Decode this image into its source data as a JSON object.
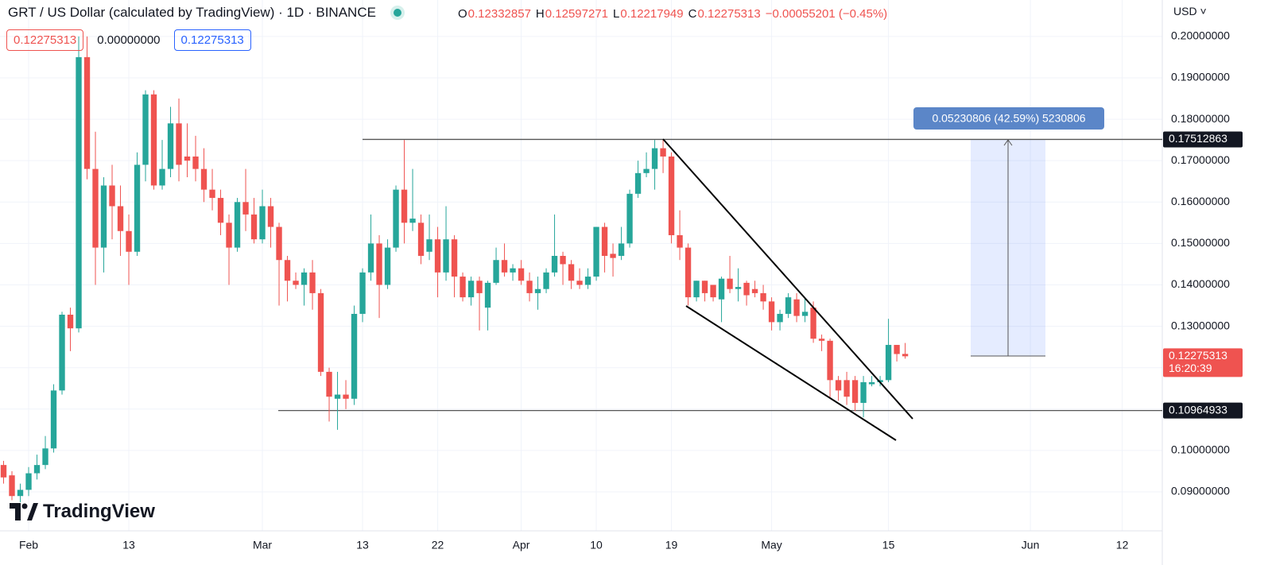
{
  "chart_data": {
    "type": "candlestick",
    "title": "GRT / US Dollar (calculated by TradingView) · 1D · BINANCE",
    "ohlc_legend": [
      {
        "label": "O",
        "value": 0.12332857
      },
      {
        "label": "H",
        "value": 0.12597271
      },
      {
        "label": "L",
        "value": 0.12217949
      },
      {
        "label": "C",
        "value": 0.12275313
      }
    ],
    "change_label": "−0.00055201 (−0.45%)",
    "legend_boxes": [
      "0.12275313",
      "0.00000000",
      "0.12275313"
    ],
    "currency": "USD",
    "logo": "TradingView",
    "up_color": "#26a69a",
    "down_color": "#ef5350",
    "grid": true,
    "x": [
      -3,
      -2,
      -1,
      0,
      1,
      2,
      3,
      4,
      5,
      6,
      7,
      8,
      9,
      10,
      11,
      12,
      13,
      14,
      15,
      16,
      17,
      18,
      19,
      20,
      21,
      22,
      23,
      24,
      25,
      26,
      27,
      28,
      29,
      30,
      31,
      32,
      33,
      34,
      35,
      36,
      37,
      38,
      39,
      40,
      41,
      42,
      43,
      44,
      45,
      46,
      47,
      48,
      49,
      50,
      51,
      52,
      53,
      54,
      55,
      56,
      57,
      58,
      59,
      60,
      61,
      62,
      63,
      64,
      65,
      66,
      67,
      68,
      69,
      70,
      71,
      72,
      73,
      74,
      75,
      76,
      77,
      78,
      79,
      80,
      81,
      82,
      83,
      84,
      85,
      86,
      87,
      88,
      89,
      90,
      91,
      92,
      93,
      94,
      95,
      96,
      97,
      98,
      99,
      100,
      101,
      102,
      103,
      104,
      105
    ],
    "open": [
      0.0965,
      0.094,
      0.089,
      0.0905,
      0.0945,
      0.0965,
      0.1005,
      0.1145,
      0.1328,
      0.1295,
      0.195,
      0.168,
      0.149,
      0.164,
      0.159,
      0.153,
      0.148,
      0.169,
      0.186,
      0.164,
      0.168,
      0.179,
      0.171,
      0.171,
      0.168,
      0.163,
      0.161,
      0.155,
      0.149,
      0.16,
      0.157,
      0.151,
      0.159,
      0.154,
      0.146,
      0.141,
      0.14,
      0.143,
      0.138,
      0.119,
      0.1125,
      0.1135,
      0.1125,
      0.133,
      0.143,
      0.15,
      0.14,
      0.149,
      0.163,
      0.155,
      0.155,
      0.148,
      0.151,
      0.143,
      0.151,
      0.142,
      0.137,
      0.141,
      0.1345,
      0.1405,
      0.146,
      0.143,
      0.144,
      0.141,
      0.138,
      0.139,
      0.143,
      0.147,
      0.145,
      0.141,
      0.14,
      0.142,
      0.154,
      0.1475,
      0.147,
      0.15,
      0.162,
      0.167,
      0.168,
      0.173,
      0.171,
      0.152,
      0.149,
      0.137,
      0.141,
      0.14,
      0.1365,
      0.1415,
      0.139,
      0.1405,
      0.139,
      0.138,
      0.136,
      0.131,
      0.133,
      0.1365,
      0.1325,
      0.1345,
      0.127,
      0.1265,
      0.117,
      0.117,
      0.117,
      0.1115,
      0.116,
      0.1165,
      0.117,
      0.1255,
      0.12332857
    ],
    "high": [
      0.0975,
      0.095,
      0.092,
      0.096,
      0.099,
      0.1035,
      0.116,
      0.1335,
      0.1345,
      0.2,
      0.2,
      0.177,
      0.166,
      0.169,
      0.164,
      0.157,
      0.172,
      0.187,
      0.187,
      0.175,
      0.183,
      0.185,
      0.179,
      0.176,
      0.173,
      0.168,
      0.163,
      0.157,
      0.161,
      0.168,
      0.161,
      0.163,
      0.161,
      0.155,
      0.147,
      0.143,
      0.144,
      0.146,
      0.139,
      0.12,
      0.119,
      0.117,
      0.135,
      0.144,
      0.157,
      0.152,
      0.151,
      0.164,
      0.175,
      0.168,
      0.157,
      0.157,
      0.154,
      0.159,
      0.152,
      0.143,
      0.142,
      0.142,
      0.141,
      0.149,
      0.15,
      0.145,
      0.146,
      0.143,
      0.142,
      0.144,
      0.157,
      0.148,
      0.146,
      0.144,
      0.144,
      0.154,
      0.155,
      0.15,
      0.154,
      0.163,
      0.17,
      0.172,
      0.175,
      0.175,
      0.172,
      0.158,
      0.15,
      0.141,
      0.141,
      0.14,
      0.142,
      0.147,
      0.144,
      0.141,
      0.141,
      0.14,
      0.137,
      0.134,
      0.138,
      0.138,
      0.137,
      0.136,
      0.128,
      0.127,
      0.118,
      0.119,
      0.118,
      0.118,
      0.118,
      0.118,
      0.1318,
      0.1255,
      0.12597271
    ],
    "low": [
      0.092,
      0.088,
      0.0875,
      0.089,
      0.093,
      0.0955,
      0.0995,
      0.1135,
      0.124,
      0.1285,
      0.1655,
      0.14,
      0.143,
      0.151,
      0.147,
      0.14,
      0.147,
      0.165,
      0.163,
      0.163,
      0.166,
      0.165,
      0.166,
      0.165,
      0.16,
      0.158,
      0.152,
      0.14,
      0.148,
      0.153,
      0.15,
      0.15,
      0.149,
      0.135,
      0.136,
      0.139,
      0.135,
      0.134,
      0.118,
      0.107,
      0.105,
      0.11,
      0.111,
      0.131,
      0.141,
      0.132,
      0.139,
      0.148,
      0.15,
      0.153,
      0.145,
      0.146,
      0.137,
      0.141,
      0.137,
      0.136,
      0.135,
      0.129,
      0.129,
      0.14,
      0.142,
      0.141,
      0.14,
      0.136,
      0.134,
      0.138,
      0.142,
      0.14,
      0.139,
      0.139,
      0.139,
      0.141,
      0.143,
      0.142,
      0.146,
      0.149,
      0.161,
      0.166,
      0.163,
      0.167,
      0.15,
      0.146,
      0.135,
      0.136,
      0.136,
      0.136,
      0.131,
      0.138,
      0.136,
      0.135,
      0.137,
      0.134,
      0.129,
      0.129,
      0.132,
      0.131,
      0.131,
      0.126,
      0.124,
      0.1125,
      0.112,
      0.111,
      0.1095,
      0.108,
      0.1155,
      0.1155,
      0.1165,
      0.1215,
      0.12217949
    ],
    "close": [
      0.0935,
      0.089,
      0.0905,
      0.0945,
      0.0965,
      0.1005,
      0.1145,
      0.1328,
      0.1295,
      0.195,
      0.168,
      0.149,
      0.164,
      0.159,
      0.153,
      0.148,
      0.169,
      0.186,
      0.164,
      0.168,
      0.179,
      0.169,
      0.17,
      0.168,
      0.163,
      0.161,
      0.155,
      0.149,
      0.16,
      0.157,
      0.151,
      0.159,
      0.154,
      0.146,
      0.141,
      0.14,
      0.143,
      0.138,
      0.119,
      0.113,
      0.1135,
      0.1125,
      0.133,
      0.143,
      0.15,
      0.14,
      0.149,
      0.163,
      0.155,
      0.156,
      0.147,
      0.151,
      0.143,
      0.151,
      0.142,
      0.137,
      0.141,
      0.138,
      0.1405,
      0.146,
      0.143,
      0.144,
      0.141,
      0.138,
      0.139,
      0.143,
      0.147,
      0.145,
      0.141,
      0.14,
      0.142,
      0.154,
      0.147,
      0.1465,
      0.15,
      0.162,
      0.167,
      0.168,
      0.173,
      0.171,
      0.152,
      0.149,
      0.137,
      0.141,
      0.138,
      0.137,
      0.1415,
      0.139,
      0.1395,
      0.1375,
      0.138,
      0.136,
      0.131,
      0.133,
      0.137,
      0.1325,
      0.1335,
      0.127,
      0.1265,
      0.117,
      0.1145,
      0.113,
      0.1115,
      0.1165,
      0.1165,
      0.117,
      0.1255,
      0.1233,
      0.12275313
    ],
    "xlim": [
      -3.43,
      135.8
    ],
    "xticks": [
      {
        "value": 0,
        "label": "Feb"
      },
      {
        "value": 12,
        "label": "13"
      },
      {
        "value": 28,
        "label": "Mar"
      },
      {
        "value": 40,
        "label": "13"
      },
      {
        "value": 49,
        "label": "22"
      },
      {
        "value": 59,
        "label": "Apr"
      },
      {
        "value": 68,
        "label": "10"
      },
      {
        "value": 77,
        "label": "19"
      },
      {
        "value": 89,
        "label": "May"
      },
      {
        "value": 103,
        "label": "15"
      },
      {
        "value": 120,
        "label": "Jun"
      },
      {
        "value": 131,
        "label": "12"
      }
    ],
    "ylim": [
      0.0806,
      0.2088
    ],
    "yticks": [
      {
        "value": 0.09,
        "label": "0.09000000"
      },
      {
        "value": 0.1,
        "label": "0.10000000"
      },
      {
        "value": 0.13,
        "label": "0.13000000"
      },
      {
        "value": 0.14,
        "label": "0.14000000"
      },
      {
        "value": 0.15,
        "label": "0.15000000"
      },
      {
        "value": 0.16,
        "label": "0.16000000"
      },
      {
        "value": 0.17,
        "label": "0.17000000"
      },
      {
        "value": 0.18,
        "label": "0.18000000"
      },
      {
        "value": 0.19,
        "label": "0.19000000"
      },
      {
        "value": 0.2,
        "label": "0.20000000"
      }
    ],
    "grid_only_ticks": [
      0.11,
      0.12
    ],
    "price_lines": [
      0.17512863,
      0.10964933
    ],
    "last_price": 0.12275313,
    "countdown": "16:20:39",
    "measure_label": "0.05230806 (42.59%) 5230806"
  }
}
